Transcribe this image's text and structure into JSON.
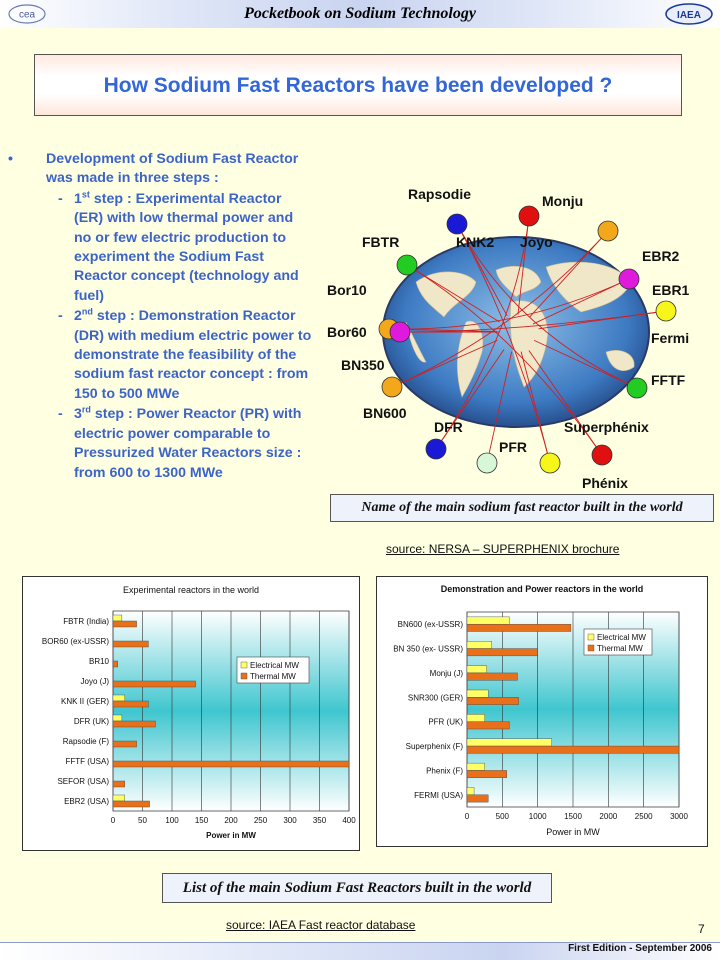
{
  "header": {
    "title": "Pocketbook on Sodium Technology",
    "logo_left": "cea",
    "logo_right": "IAEA"
  },
  "main_title": "How Sodium Fast Reactors have been developed ?",
  "bullets": {
    "intro": "Development of Sodium Fast Reactor was made in three steps :",
    "steps": [
      {
        "ord": "1",
        "sup": "st",
        "text": " step : Experimental Reactor (ER) with low thermal power and no or few electric production to experiment the Sodium Fast Reactor concept (technology and fuel)"
      },
      {
        "ord": "2",
        "sup": "nd",
        "text": " step : Demonstration Reactor (DR) with medium electric power to demonstrate the feasibility of the sodium fast reactor concept : from 150 to 500 MWe"
      },
      {
        "ord": "3",
        "sup": "rd",
        "text": " step : Power Reactor (PR) with electric power comparable to Pressurized Water Reactors size : from 600 to 1300 MWe"
      }
    ]
  },
  "map": {
    "reactors": [
      {
        "name": "Rapsodie",
        "color": "#1a1ad6"
      },
      {
        "name": "Monju",
        "color": "#e01010"
      },
      {
        "name": "FBTR",
        "color": "#22cc22"
      },
      {
        "name": "KNK2",
        "color": ""
      },
      {
        "name": "Joyo",
        "color": "#f2a81a"
      },
      {
        "name": "EBR2",
        "color": "#e01adc"
      },
      {
        "name": "EBR1",
        "color": "#f6f61a"
      },
      {
        "name": "Bor10",
        "color": "#f2a81a"
      },
      {
        "name": "Fermi",
        "color": ""
      },
      {
        "name": "Bor60",
        "color": "#e01adc"
      },
      {
        "name": "BN350",
        "color": ""
      },
      {
        "name": "FFTF",
        "color": "#22cc22"
      },
      {
        "name": "BN600",
        "color": "#f2a81a"
      },
      {
        "name": "DFR",
        "color": "#1a1ad6"
      },
      {
        "name": "Superphénix",
        "color": "#e01010"
      },
      {
        "name": "PFR",
        "color": "#d8f6d8"
      },
      {
        "name": "Phénix",
        "color": "#f6f61a"
      }
    ]
  },
  "caption_map": "Name of the main sodium fast reactor built in the world",
  "source_map": {
    "label": "source",
    "text": ": NERSA – SUPERPHENIX brochure"
  },
  "chart_data": [
    {
      "type": "bar",
      "title": "Experimental reactors in the world",
      "xlabel": "Power in MW",
      "ylabel": "",
      "orientation": "horizontal",
      "categories": [
        "FBTR (India)",
        "BOR60 (ex-USSR)",
        "BR10",
        "Joyo (J)",
        "KNK II (GER)",
        "DFR (UK)",
        "Rapsodie (F)",
        "FFTF (USA)",
        "SEFOR (USA)",
        "EBR2 (USA)"
      ],
      "series": [
        {
          "name": "Electrical MW",
          "color": "#ffff66",
          "values": [
            15,
            0,
            0,
            0,
            20,
            15,
            0,
            0,
            0,
            20
          ]
        },
        {
          "name": "Thermal MW",
          "color": "#e8701a",
          "values": [
            40,
            60,
            8,
            140,
            60,
            72,
            40,
            400,
            20,
            62
          ]
        }
      ],
      "xlim": [
        0,
        400
      ],
      "xticks": [
        0,
        50,
        100,
        150,
        200,
        250,
        300,
        350,
        400
      ],
      "grid": true,
      "legend": "right"
    },
    {
      "type": "bar",
      "title": "Demonstration and Power reactors in the world",
      "xlabel": "Power in MW",
      "ylabel": "",
      "orientation": "horizontal",
      "categories": [
        "BN600 (ex-USSR)",
        "BN 350 (ex- USSR)",
        "Monju (J)",
        "SNR300 (GER)",
        "PFR (UK)",
        "Superphenix (F)",
        "Phenix (F)",
        "FERMI (USA)"
      ],
      "series": [
        {
          "name": "Electrical MW",
          "color": "#ffff66",
          "values": [
            600,
            350,
            280,
            300,
            250,
            1200,
            250,
            100
          ]
        },
        {
          "name": "Thermal MW",
          "color": "#e8701a",
          "values": [
            1470,
            1000,
            714,
            730,
            600,
            3000,
            563,
            300
          ]
        }
      ],
      "xlim": [
        0,
        3000
      ],
      "xticks": [
        0,
        500,
        1000,
        1500,
        2000,
        2500,
        3000
      ],
      "grid": true,
      "legend": "top-right"
    }
  ],
  "caption_charts": "List of the main Sodium Fast Reactors built in the world",
  "source_charts": {
    "label": "source",
    "text": ": IAEA Fast reactor database"
  },
  "page_number": "7",
  "footer_edition": "First Edition - September 2006"
}
